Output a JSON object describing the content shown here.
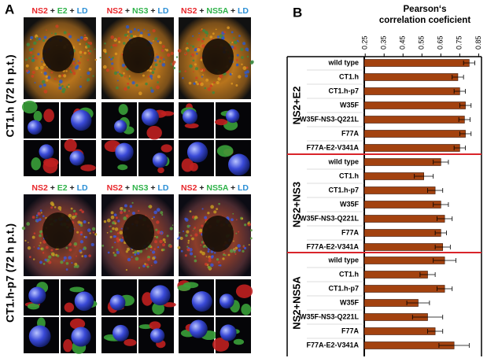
{
  "panel_a": {
    "letter": "A",
    "columns": [
      [
        {
          "text": "NS2",
          "color": "#e8262b"
        },
        {
          "text": "+",
          "color": "#222222"
        },
        {
          "text": "E2",
          "color": "#2fb34a"
        },
        {
          "text": "+",
          "color": "#222222"
        },
        {
          "text": "LD",
          "color": "#2b8fd6"
        }
      ],
      [
        {
          "text": "NS2",
          "color": "#e8262b"
        },
        {
          "text": "+",
          "color": "#222222"
        },
        {
          "text": "NS3",
          "color": "#2fb34a"
        },
        {
          "text": "+",
          "color": "#222222"
        },
        {
          "text": "LD",
          "color": "#2b8fd6"
        }
      ],
      [
        {
          "text": "NS2",
          "color": "#e8262b"
        },
        {
          "text": "+",
          "color": "#222222"
        },
        {
          "text": "NS5A",
          "color": "#2fb34a"
        },
        {
          "text": "+",
          "color": "#222222"
        },
        {
          "text": "LD",
          "color": "#2b8fd6"
        }
      ]
    ],
    "rows": [
      "CT1.h (72 h p.t.)",
      "CT1.h-p7 (72 h p.t.)"
    ]
  },
  "chart_data": {
    "type": "grouped-hbar",
    "letter": "B",
    "xlabel": [
      "Pearson‘s",
      "correlation coeficient"
    ],
    "xlim": [
      0.245,
      0.865
    ],
    "xticks": [
      0.25,
      0.35,
      0.45,
      0.55,
      0.65,
      0.75,
      0.85
    ],
    "color": "#a3420f",
    "separator_color": "#d9242a",
    "groups": [
      {
        "name": "NS2+E2",
        "categories": [
          "wild type",
          "CT1.h",
          "CT1.h-p7",
          "W35F",
          "W35F-NS3-Q221L",
          "F77A",
          "F77A-E2-V341A"
        ],
        "values": [
          0.8,
          0.74,
          0.75,
          0.78,
          0.775,
          0.78,
          0.75
        ],
        "errors": [
          0.03,
          0.03,
          0.03,
          0.03,
          0.03,
          0.03,
          0.03
        ]
      },
      {
        "name": "NS2+NS3",
        "categories": [
          "wild type",
          "CT1.h",
          "CT1.h-p7",
          "W35F",
          "W35F-NS3-Q221L",
          "F77A",
          "F77A-E2-V341A"
        ],
        "values": [
          0.65,
          0.56,
          0.62,
          0.65,
          0.67,
          0.65,
          0.66
        ],
        "errors": [
          0.04,
          0.05,
          0.04,
          0.04,
          0.04,
          0.03,
          0.04
        ]
      },
      {
        "name": "NS2+NS5A",
        "categories": [
          "wild type",
          "CT1.h",
          "CT1.h-p7",
          "W35F",
          "W35F-NS3-Q221L",
          "F77A",
          "F77A-E2-V341A"
        ],
        "values": [
          0.67,
          0.58,
          0.67,
          0.53,
          0.58,
          0.62,
          0.72
        ],
        "errors": [
          0.06,
          0.04,
          0.04,
          0.06,
          0.08,
          0.04,
          0.08
        ]
      }
    ]
  }
}
